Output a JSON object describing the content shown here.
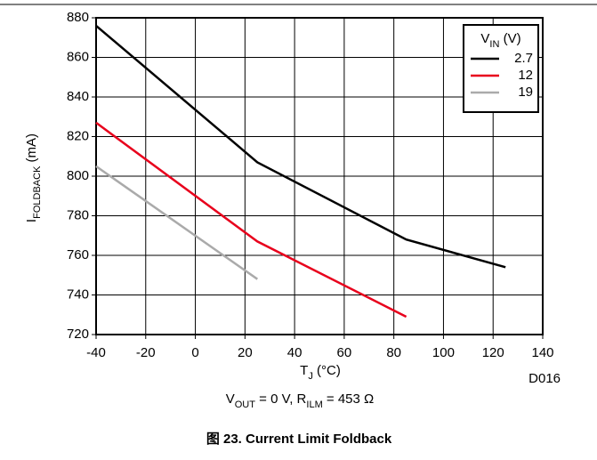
{
  "chart_data": {
    "type": "line",
    "xlabel": {
      "main": "T",
      "sub": "J",
      "rest": " (°C)"
    },
    "ylabel": {
      "main": "I",
      "sub": "FOLDBACK",
      "rest": " (mA)"
    },
    "legend_title": {
      "main": "V",
      "sub": "IN",
      "rest": " (V)"
    },
    "subtitle": {
      "a": "V",
      "a_sub": "OUT",
      "b": " = 0 V, R",
      "b_sub": "ILM",
      "c": " = 453 Ω"
    },
    "caption": "图 23. Current Limit Foldback",
    "code": "D016",
    "xlim": [
      -40,
      140
    ],
    "xticks": [
      -40,
      -20,
      0,
      20,
      40,
      60,
      80,
      100,
      120,
      140
    ],
    "ylim": [
      720,
      880
    ],
    "yticks": [
      720,
      740,
      760,
      780,
      800,
      820,
      840,
      860,
      880
    ],
    "grid": true,
    "legend": "upper right",
    "series": [
      {
        "name": "2.7",
        "color": "#000000",
        "x": [
          -40,
          25,
          85,
          125
        ],
        "values": [
          876,
          807,
          768,
          754
        ]
      },
      {
        "name": "12",
        "color": "#e8001c",
        "x": [
          -40,
          25,
          85
        ],
        "values": [
          827,
          767,
          729
        ]
      },
      {
        "name": "19",
        "color": "#aaaaaa",
        "x": [
          -40,
          25
        ],
        "values": [
          805,
          748
        ]
      }
    ]
  }
}
